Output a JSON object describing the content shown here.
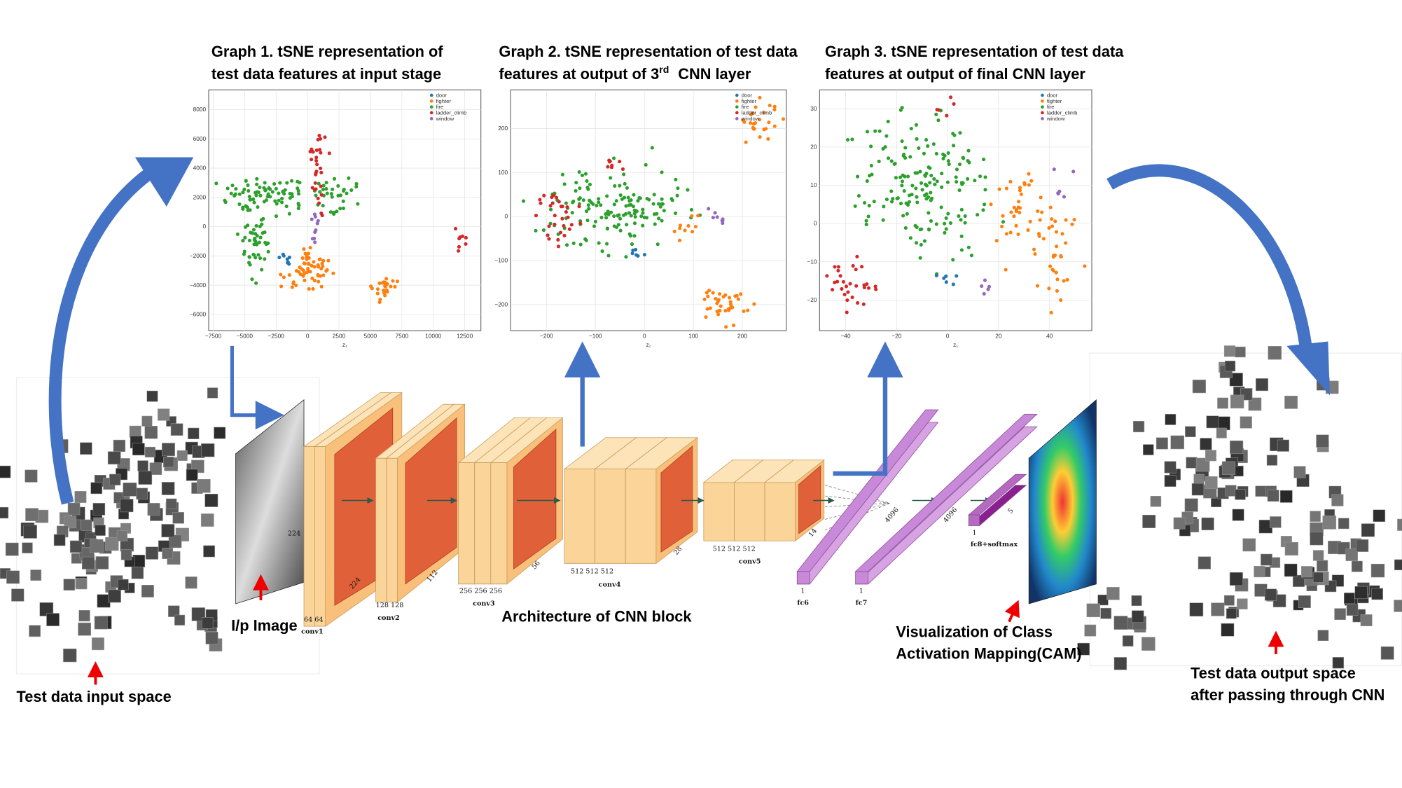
{
  "graphs": [
    {
      "title": [
        "Graph 1. tSNE representation of",
        "test data features at input stage"
      ],
      "xticks": [
        "−7500",
        "−5000",
        "−2500",
        "0",
        "2500",
        "5000",
        "7500",
        "10000",
        "12500"
      ],
      "yticks": [
        "8000",
        "6000",
        "4000",
        "2000",
        "0",
        "−2000",
        "−4000",
        "−6000"
      ],
      "xlabel": "z₁"
    },
    {
      "title": [
        "Graph 2. tSNE representation of test data",
        "features at output  of 3",
        "rd",
        "CNN layer"
      ],
      "xticks": [
        "−200",
        "−100",
        "0",
        "100",
        "200"
      ],
      "yticks": [
        "200",
        "100",
        "0",
        "−100",
        "−200"
      ],
      "xlabel": "z₁"
    },
    {
      "title": [
        "Graph 3. tSNE representation of test data",
        "features at output of final CNN  layer"
      ],
      "xticks": [
        "−40",
        "−20",
        "0",
        "20",
        "40"
      ],
      "yticks": [
        "30",
        "20",
        "10",
        "0",
        "−10",
        "−20"
      ],
      "xlabel": "z₁"
    }
  ],
  "legend": [
    {
      "name": "door",
      "color": "#1f77b4"
    },
    {
      "name": "fighter",
      "color": "#ff7f0e"
    },
    {
      "name": "fire",
      "color": "#2ca02c"
    },
    {
      "name": "ladder_climb",
      "color": "#d62728"
    },
    {
      "name": "window",
      "color": "#9467bd"
    }
  ],
  "layers": {
    "conv1": {
      "name": "conv1",
      "channels": "64 64",
      "size": "224"
    },
    "conv2": {
      "name": "conv2",
      "channels": "128 128",
      "size": "112"
    },
    "conv3": {
      "name": "conv3",
      "channels": "256  256  256",
      "size": "56"
    },
    "conv4": {
      "name": "conv4",
      "channels": "512        512        512",
      "size": "28"
    },
    "conv5": {
      "name": "conv5",
      "channels": "512       512       512",
      "size": "14"
    },
    "fc6": {
      "name": "fc6",
      "depth": "1",
      "size": "4096"
    },
    "fc7": {
      "name": "fc7",
      "depth": "1",
      "size": "4096"
    },
    "fc8": {
      "name": "fc8+softmax",
      "depth": "1",
      "size": "5"
    }
  },
  "captions": {
    "input_image": "I/p Image",
    "architecture": "Architecture of CNN block",
    "cam": [
      "Visualization of Class",
      "Activation Mapping(CAM)"
    ],
    "input_space": "Test data input space",
    "output_space": [
      "Test data output space",
      "after passing through CNN"
    ]
  }
}
